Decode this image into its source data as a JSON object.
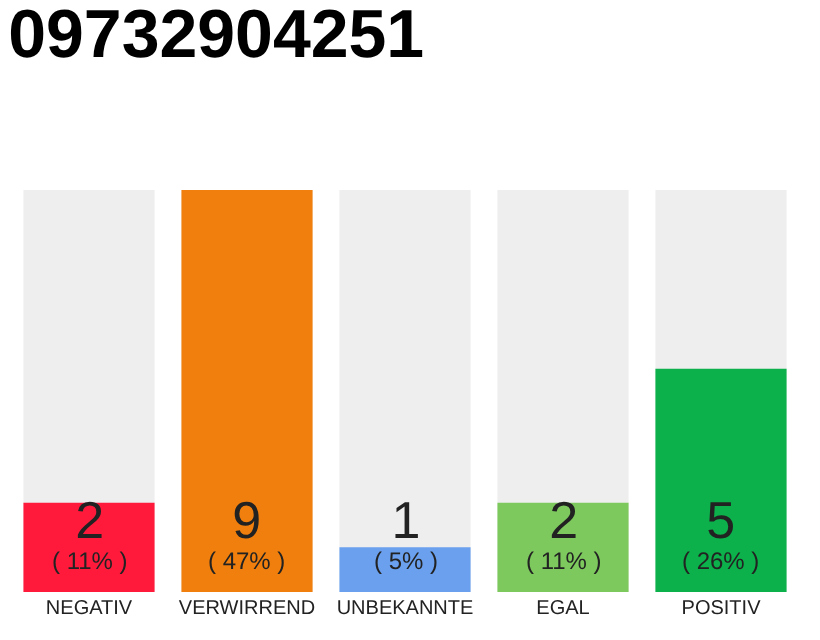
{
  "chart_data": {
    "type": "bar",
    "title": "09732904251",
    "categories": [
      "NEGATIV",
      "VERWIRREND",
      "UNBEKANNTE",
      "EGAL",
      "POSITIV"
    ],
    "values": [
      2,
      9,
      1,
      2,
      5
    ],
    "colors": [
      "#ff1a3c",
      "#f07f0d",
      "#6aa0ee",
      "#7dc95e",
      "#0cb14b"
    ],
    "value_labels": [
      "2\n( 11% )",
      "9\n( 47% )",
      "1\n( 5% )",
      "2\n( 11% )",
      "5\n( 26% )"
    ],
    "ylim": [
      0,
      9
    ]
  }
}
